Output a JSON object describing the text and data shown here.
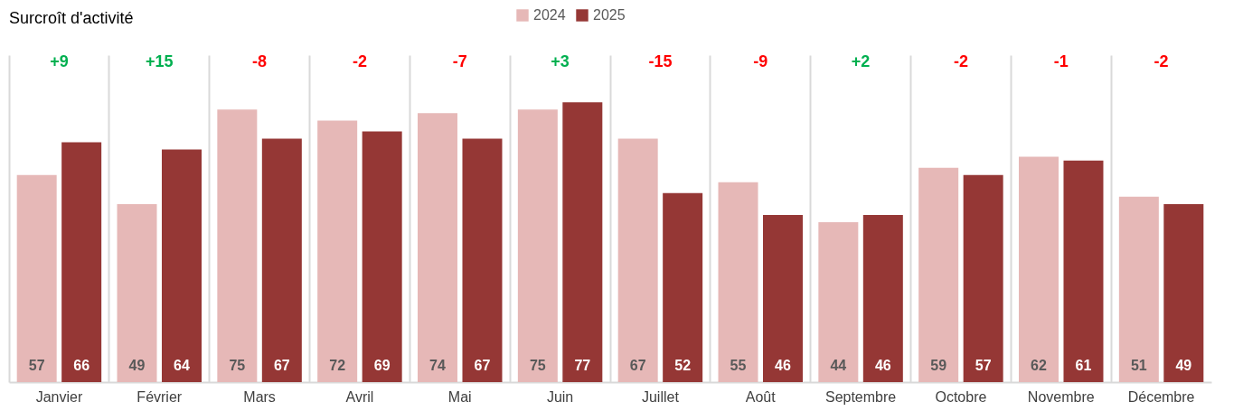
{
  "chart_data": {
    "type": "bar",
    "title": "Surcroît d'activité",
    "categories": [
      "Janvier",
      "Février",
      "Mars",
      "Avril",
      "Mai",
      "Juin",
      "Juillet",
      "Août",
      "Septembre",
      "Octobre",
      "Novembre",
      "Décembre"
    ],
    "series": [
      {
        "name": "2024",
        "color": "#e6b8b7",
        "values": [
          57,
          49,
          75,
          72,
          74,
          75,
          67,
          55,
          44,
          59,
          62,
          51
        ]
      },
      {
        "name": "2025",
        "color": "#953735",
        "values": [
          66,
          64,
          67,
          69,
          67,
          77,
          52,
          46,
          46,
          57,
          61,
          49
        ]
      }
    ],
    "ylim": [
      0,
      90
    ],
    "data_labels": true,
    "legend": "top",
    "grid": "x",
    "annotations": [
      "+9",
      "+15",
      "-8",
      "-2",
      "-7",
      "+3",
      "-15",
      "-9",
      "+2",
      "-2",
      "-1",
      "-2"
    ]
  }
}
